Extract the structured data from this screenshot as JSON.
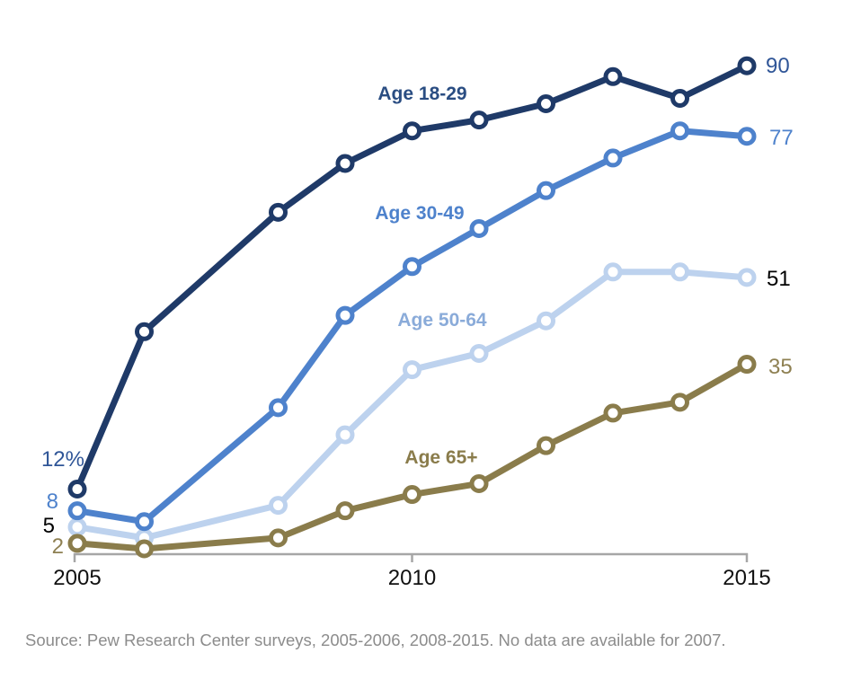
{
  "page": {
    "background": "#FFFFFF"
  },
  "chart_data": {
    "type": "line",
    "title": "",
    "x": [
      2005,
      2006,
      2008,
      2009,
      2010,
      2011,
      2012,
      2013,
      2014,
      2015
    ],
    "x_missing": [
      2007
    ],
    "x_tick_labels": [
      "2005",
      "2010",
      "2015"
    ],
    "ylim": [
      0,
      95
    ],
    "unit": "%",
    "grid": false,
    "legend": "inline-series-labels",
    "axis_color": "#A6A6A6",
    "x_tick_label_color": "#111111",
    "series": [
      {
        "name": "Age 18-29",
        "values": [
          12,
          41,
          63,
          72,
          78,
          80,
          83,
          88,
          84,
          90
        ],
        "color": "#1F3A68",
        "name_label_color": "#2A4D82",
        "value_label_color": "#2F5597",
        "first_value_label": "12%",
        "last_value_label": "90"
      },
      {
        "name": "Age 30-49",
        "values": [
          8,
          6,
          27,
          44,
          53,
          60,
          67,
          73,
          78,
          77
        ],
        "color": "#4E82CC",
        "name_label_color": "#4E82CC",
        "value_label_color": "#4E82CC",
        "first_value_label": "8",
        "last_value_label": "77"
      },
      {
        "name": "Age 50-64",
        "values": [
          5,
          3,
          9,
          22,
          34,
          37,
          43,
          52,
          52,
          51
        ],
        "color": "#BDD2EE",
        "name_label_color": "#8AABD9",
        "value_label_color": "#000000",
        "first_value_label": "5",
        "last_value_label": "51"
      },
      {
        "name": "Age 65+",
        "values": [
          2,
          1,
          3,
          8,
          11,
          13,
          20,
          26,
          28,
          35
        ],
        "color": "#8A7C4B",
        "name_label_color": "#8A7C4B",
        "value_label_color": "#8E8052",
        "first_value_label": "2",
        "last_value_label": "35"
      }
    ]
  },
  "footer": {
    "source_text": "Source: Pew Research Center surveys, 2005-2006, 2008-2015. No data are available for 2007."
  }
}
